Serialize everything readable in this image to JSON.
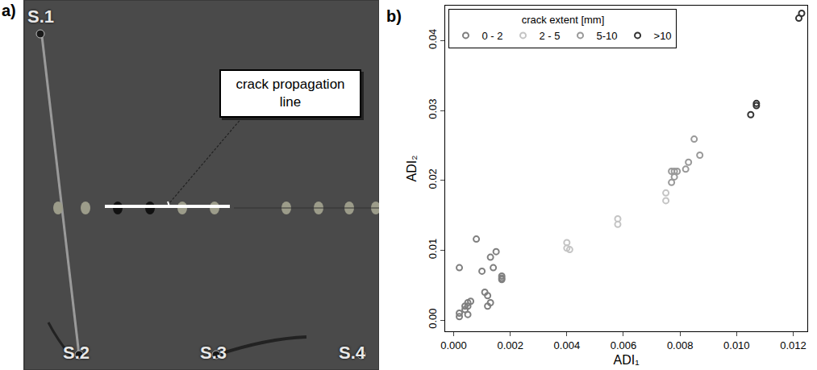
{
  "photo": {
    "panel": "a)",
    "sensors": [
      "S.1",
      "S.2",
      "S.3",
      "S.4"
    ],
    "callout": "crack propagation line"
  },
  "chart_data": {
    "type": "scatter",
    "annotations": [
      {
        "text": "b)"
      }
    ],
    "x_label": "ADI₁",
    "y_label": "ADI₂",
    "legend_title": "crack extent [mm]",
    "legend": "top left",
    "grid": false,
    "marker": "open circle",
    "xlim": [
      -0.0003,
      0.0125
    ],
    "ylim": [
      -0.0016,
      0.045
    ],
    "xticks": [
      {
        "value": 0,
        "label": "0.000"
      },
      {
        "value": 0.002,
        "label": "0.002"
      },
      {
        "value": 0.004,
        "label": "0.004"
      },
      {
        "value": 0.006,
        "label": "0.006"
      },
      {
        "value": 0.008,
        "label": "0.008"
      },
      {
        "value": 0.01,
        "label": "0.010"
      },
      {
        "value": 0.012,
        "label": "0.012"
      }
    ],
    "yticks": [
      {
        "value": 0,
        "label": "0.00"
      },
      {
        "value": 0.01,
        "label": "0.01"
      },
      {
        "value": 0.02,
        "label": "0.02"
      },
      {
        "value": 0.03,
        "label": "0.03"
      },
      {
        "value": 0.04,
        "label": "0.04"
      }
    ],
    "series": [
      {
        "name": "0 - 2",
        "color": "#7f7f7f",
        "x": [
          0.0002,
          0.0002,
          0.0002,
          0.0004,
          0.0005,
          0.0005,
          0.0005,
          0.0004,
          0.0006,
          0.0008,
          0.001,
          0.0011,
          0.0012,
          0.0012,
          0.0013,
          0.0013,
          0.0014,
          0.0015,
          0.0017,
          0.0017,
          0.0017
        ],
        "values": [
          0.0075,
          0.001,
          0.0005,
          0.0015,
          0.002,
          0.0008,
          0.0025,
          0.002,
          0.0027,
          0.0116,
          0.007,
          0.004,
          0.0035,
          0.002,
          0.0025,
          0.009,
          0.0075,
          0.0098,
          0.0063,
          0.0058,
          0.006
        ]
      },
      {
        "name": "2 - 5",
        "color": "#c4c4c4",
        "x": [
          0.004,
          0.004,
          0.0041,
          0.0058,
          0.0058,
          0.0075,
          0.0075
        ],
        "values": [
          0.0111,
          0.0103,
          0.0101,
          0.0145,
          0.0137,
          0.0182,
          0.0171
        ]
      },
      {
        "name": "5-10",
        "color": "#999999",
        "x": [
          0.0077,
          0.0077,
          0.0078,
          0.0078,
          0.0079,
          0.0082,
          0.0083,
          0.0085,
          0.0087
        ],
        "values": [
          0.0213,
          0.0197,
          0.0213,
          0.0205,
          0.0213,
          0.0216,
          0.0226,
          0.0259,
          0.0236
        ]
      },
      {
        "name": ">10",
        "color": "#333333",
        "x": [
          0.0105,
          0.0107,
          0.0107,
          0.0122,
          0.0123
        ],
        "values": [
          0.0294,
          0.031,
          0.0307,
          0.0432,
          0.0439
        ]
      }
    ]
  }
}
